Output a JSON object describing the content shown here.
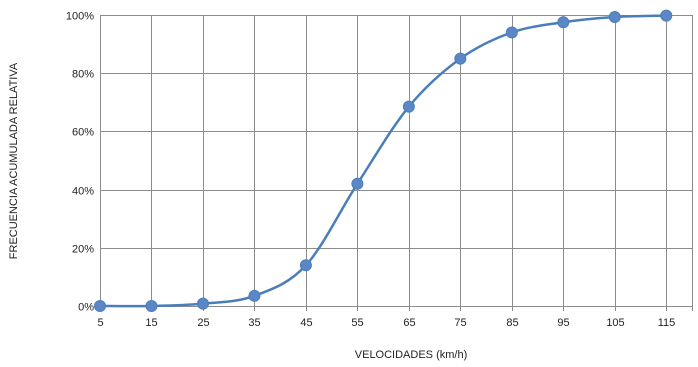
{
  "chart_data": {
    "type": "line",
    "smooth": true,
    "title": "",
    "xlabel": "VELOCIDADES (km/h)",
    "ylabel": "FRECUENCIA ACUMULADA RELATIVA",
    "x": [
      5,
      15,
      25,
      35,
      45,
      55,
      65,
      75,
      85,
      95,
      105,
      115
    ],
    "x_tick_labels": [
      "5",
      "15",
      "25",
      "35",
      "45",
      "55",
      "65",
      "75",
      "85",
      "95",
      "105",
      "115"
    ],
    "xlim": [
      5,
      120
    ],
    "y_ticks": [
      0,
      20,
      40,
      60,
      80,
      100
    ],
    "y_tick_labels": [
      "0%",
      "20%",
      "40%",
      "60%",
      "80%",
      "100%"
    ],
    "ylim": [
      0,
      100
    ],
    "grid": true,
    "series": [
      {
        "values": [
          0,
          0,
          0.8,
          3.5,
          14,
          42,
          68.5,
          85,
          94,
          97.5,
          99.3,
          99.8
        ],
        "color": "#4a7ebb",
        "marker_color": "#5b87c6"
      }
    ]
  }
}
